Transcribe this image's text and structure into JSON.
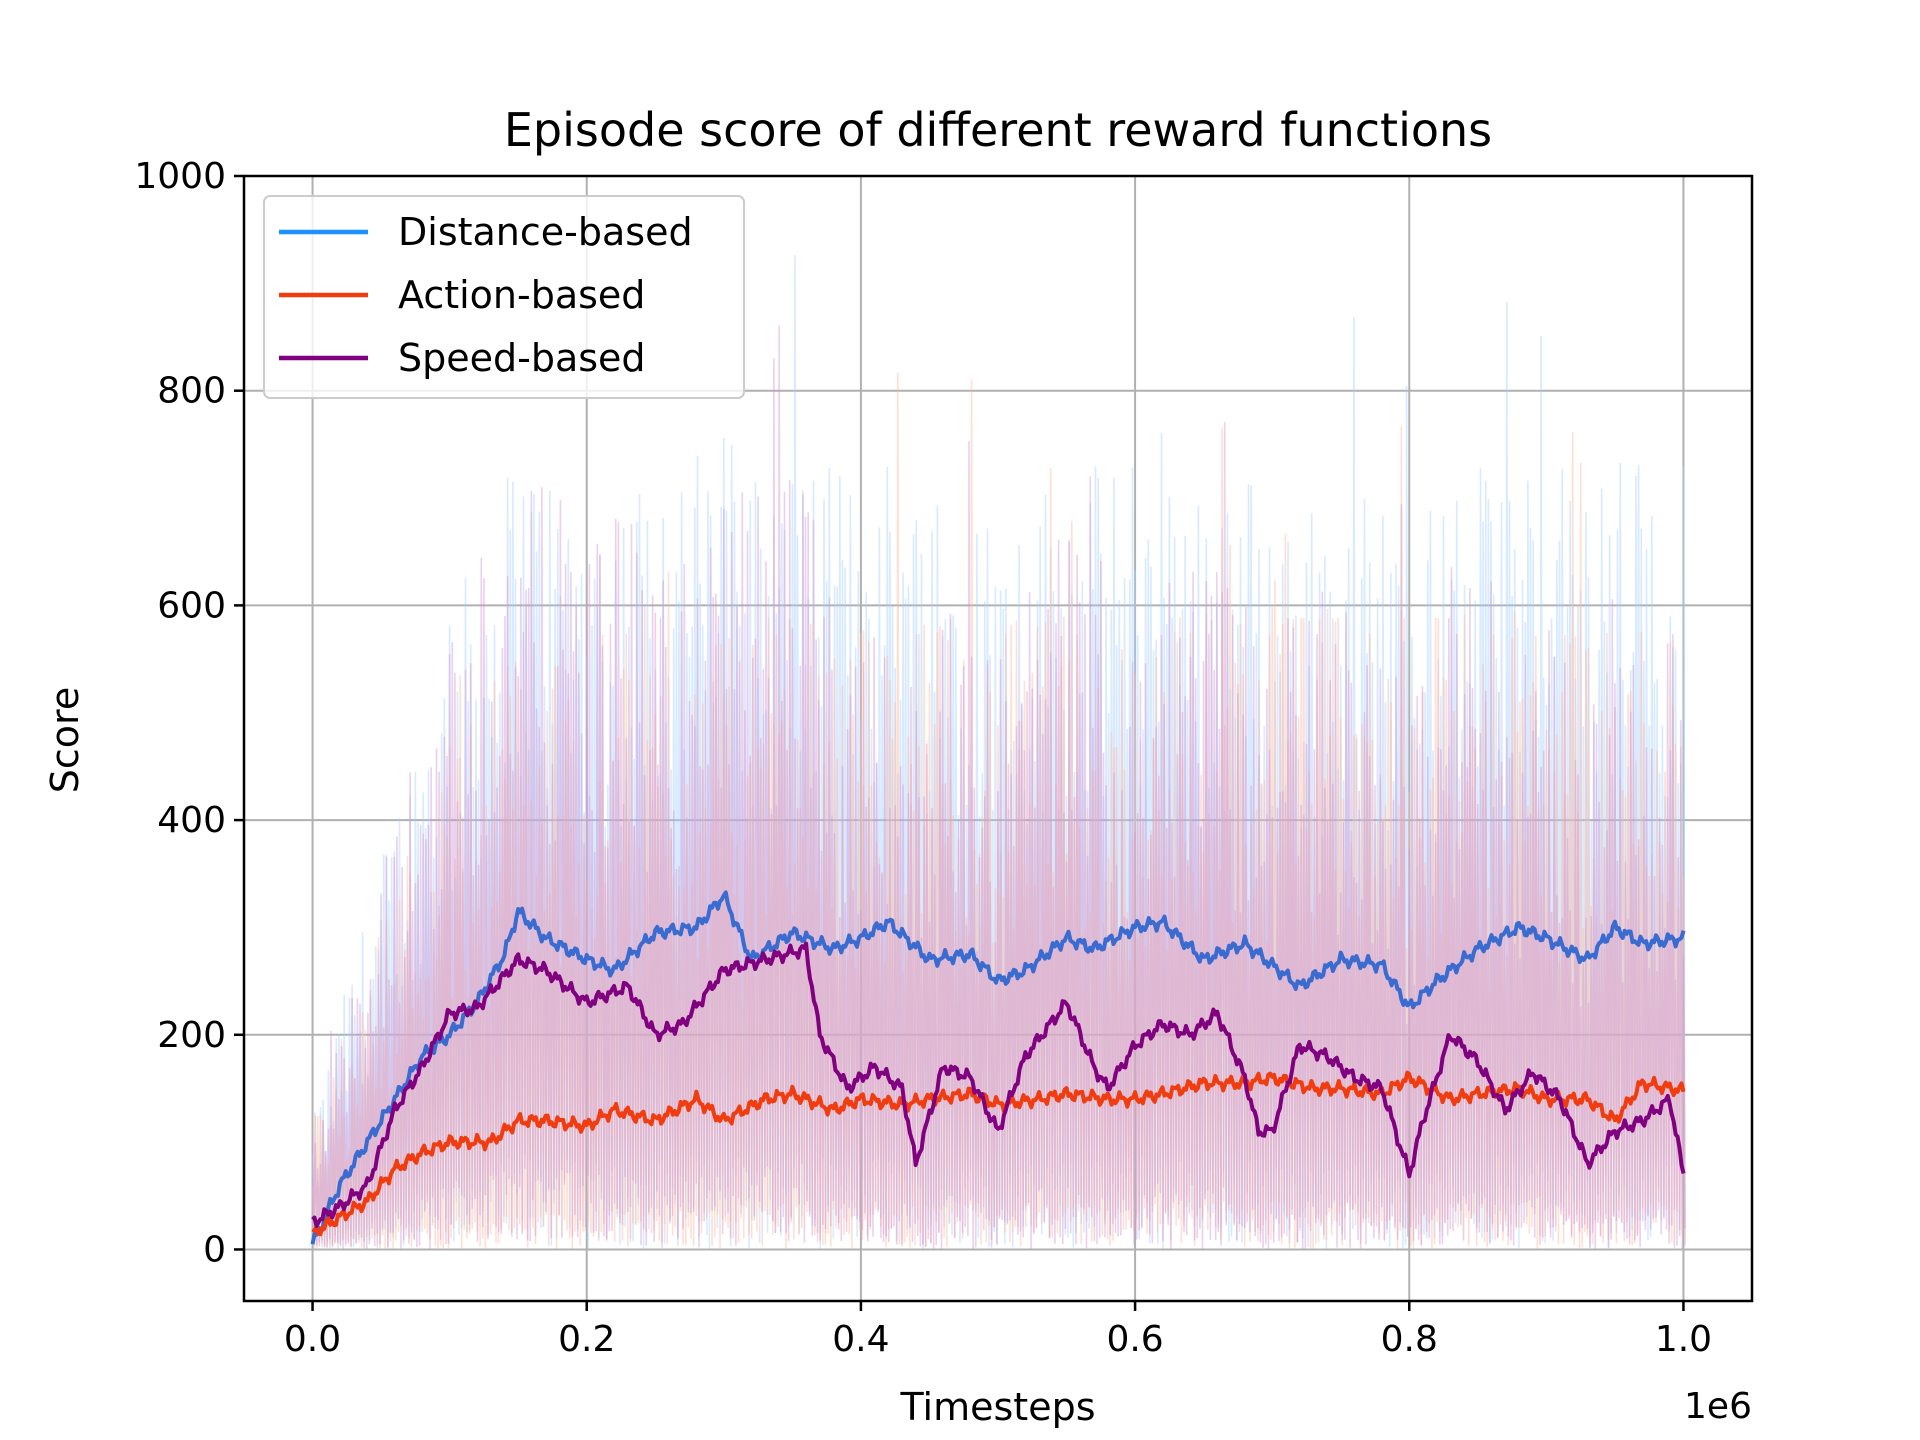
{
  "chart_data": {
    "type": "line",
    "title": "Episode score of different reward functions",
    "xlabel": "Timesteps",
    "ylabel": "Score",
    "x_offset_label": "1e6",
    "xlim": [
      -0.05,
      1.05
    ],
    "ylim": [
      -48,
      1000
    ],
    "xticks": [
      0.0,
      0.2,
      0.4,
      0.6,
      0.8,
      1.0
    ],
    "xtick_labels": [
      "0.0",
      "0.2",
      "0.4",
      "0.6",
      "0.8",
      "1.0"
    ],
    "yticks": [
      0,
      200,
      400,
      600,
      800,
      1000
    ],
    "ytick_labels": [
      "0",
      "200",
      "400",
      "600",
      "800",
      "1000"
    ],
    "grid": true,
    "legend_position": "top-left",
    "raw_band": {
      "min": 0,
      "typical_max": 550,
      "peak": 975
    },
    "series": [
      {
        "name": "Distance-based",
        "color": "#1e90ff",
        "smoothed_color": "#3a6bd0",
        "x": [
          0.0,
          0.02,
          0.04,
          0.06,
          0.08,
          0.1,
          0.12,
          0.14,
          0.15,
          0.17,
          0.2,
          0.22,
          0.25,
          0.28,
          0.3,
          0.32,
          0.35,
          0.38,
          0.4,
          0.42,
          0.45,
          0.48,
          0.5,
          0.52,
          0.55,
          0.57,
          0.6,
          0.62,
          0.65,
          0.68,
          0.7,
          0.72,
          0.75,
          0.78,
          0.8,
          0.82,
          0.85,
          0.88,
          0.9,
          0.93,
          0.95,
          0.97,
          1.0
        ],
        "y": [
          5,
          60,
          100,
          140,
          180,
          200,
          230,
          275,
          315,
          290,
          270,
          260,
          295,
          300,
          330,
          270,
          295,
          280,
          290,
          305,
          270,
          275,
          250,
          260,
          290,
          280,
          300,
          305,
          270,
          285,
          265,
          245,
          270,
          265,
          225,
          250,
          280,
          300,
          290,
          270,
          300,
          285,
          290
        ]
      },
      {
        "name": "Action-based",
        "color": "#f03c0f",
        "smoothed_color": "#f03c0f",
        "x": [
          0.0,
          0.02,
          0.04,
          0.06,
          0.08,
          0.1,
          0.13,
          0.15,
          0.17,
          0.2,
          0.22,
          0.25,
          0.28,
          0.3,
          0.33,
          0.35,
          0.38,
          0.4,
          0.43,
          0.45,
          0.48,
          0.5,
          0.53,
          0.55,
          0.58,
          0.6,
          0.62,
          0.65,
          0.68,
          0.7,
          0.73,
          0.75,
          0.78,
          0.8,
          0.83,
          0.85,
          0.88,
          0.9,
          0.93,
          0.95,
          0.97,
          1.0
        ],
        "y": [
          15,
          30,
          45,
          75,
          90,
          100,
          100,
          120,
          120,
          115,
          130,
          120,
          140,
          120,
          140,
          145,
          130,
          140,
          135,
          140,
          145,
          135,
          140,
          145,
          140,
          140,
          145,
          155,
          155,
          160,
          150,
          150,
          145,
          160,
          140,
          145,
          150,
          140,
          140,
          120,
          155,
          148
        ]
      },
      {
        "name": "Speed-based",
        "color": "#800080",
        "smoothed_color": "#800080",
        "x": [
          0.0,
          0.02,
          0.04,
          0.06,
          0.08,
          0.1,
          0.12,
          0.15,
          0.17,
          0.2,
          0.23,
          0.25,
          0.27,
          0.3,
          0.33,
          0.36,
          0.37,
          0.39,
          0.41,
          0.43,
          0.44,
          0.46,
          0.48,
          0.5,
          0.52,
          0.55,
          0.57,
          0.58,
          0.6,
          0.62,
          0.64,
          0.66,
          0.68,
          0.69,
          0.7,
          0.72,
          0.74,
          0.76,
          0.78,
          0.8,
          0.81,
          0.83,
          0.85,
          0.87,
          0.89,
          0.91,
          0.93,
          0.95,
          0.97,
          0.99,
          1.0
        ],
        "y": [
          25,
          40,
          60,
          130,
          170,
          220,
          225,
          270,
          260,
          230,
          245,
          200,
          210,
          260,
          270,
          280,
          200,
          150,
          170,
          150,
          80,
          170,
          160,
          110,
          180,
          230,
          170,
          150,
          190,
          210,
          200,
          220,
          160,
          110,
          110,
          190,
          180,
          160,
          150,
          70,
          120,
          200,
          175,
          130,
          165,
          140,
          80,
          110,
          120,
          140,
          70
        ]
      }
    ]
  }
}
